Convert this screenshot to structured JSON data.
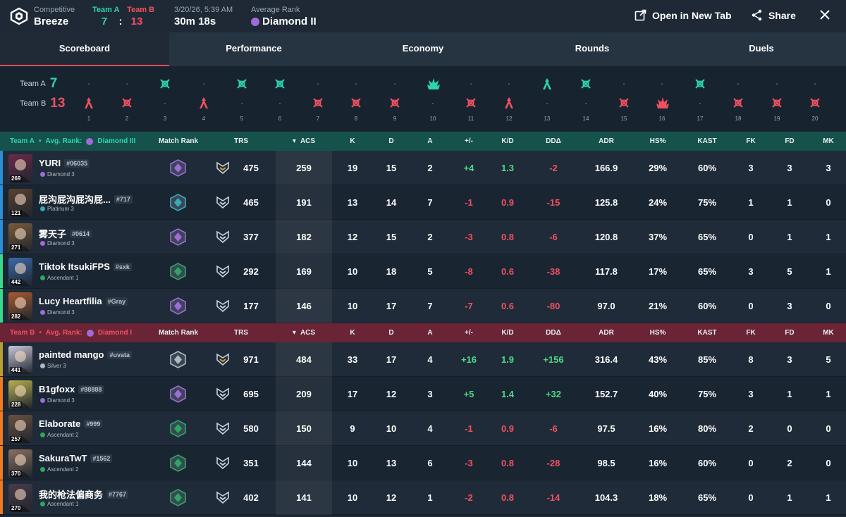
{
  "header": {
    "mode_label": "Competitive",
    "map": "Breeze",
    "team_a_label": "Team A",
    "team_b_label": "Team B",
    "team_a_score": "7",
    "score_sep": ":",
    "team_b_score": "13",
    "datetime": "3/20/26, 5:39 AM",
    "duration": "30m 18s",
    "avg_rank_label": "Average Rank",
    "avg_rank": "Diamond II",
    "open_tab_label": "Open in New Tab",
    "share_label": "Share"
  },
  "tabs": [
    "Scoreboard",
    "Performance",
    "Economy",
    "Rounds",
    "Duels"
  ],
  "timeline": {
    "team_a_label": "Team A",
    "team_a_score": "7",
    "team_b_label": "Team B",
    "team_b_score": "13",
    "rounds": [
      {
        "n": "1",
        "winner": "B",
        "type": "elim-b"
      },
      {
        "n": "2",
        "winner": "B",
        "type": "skull"
      },
      {
        "n": "3",
        "winner": "A",
        "type": "skull"
      },
      {
        "n": "4",
        "winner": "B",
        "type": "elim-b"
      },
      {
        "n": "5",
        "winner": "A",
        "type": "skull"
      },
      {
        "n": "6",
        "winner": "A",
        "type": "skull"
      },
      {
        "n": "7",
        "winner": "B",
        "type": "skull"
      },
      {
        "n": "8",
        "winner": "B",
        "type": "skull"
      },
      {
        "n": "9",
        "winner": "B",
        "type": "skull"
      },
      {
        "n": "10",
        "winner": "A",
        "type": "spike"
      },
      {
        "n": "11",
        "winner": "B",
        "type": "skull"
      },
      {
        "n": "12",
        "winner": "B",
        "type": "elim-b"
      },
      {
        "n": "13",
        "winner": "A",
        "type": "elim-b"
      },
      {
        "n": "14",
        "winner": "A",
        "type": "skull"
      },
      {
        "n": "15",
        "winner": "B",
        "type": "skull"
      },
      {
        "n": "16",
        "winner": "B",
        "type": "spike"
      },
      {
        "n": "17",
        "winner": "A",
        "type": "skull"
      },
      {
        "n": "18",
        "winner": "B",
        "type": "skull"
      },
      {
        "n": "19",
        "winner": "B",
        "type": "skull"
      },
      {
        "n": "20",
        "winner": "B",
        "type": "skull"
      }
    ]
  },
  "columns": {
    "match_rank": "Match Rank",
    "trs": "TRS",
    "acs": "ACS",
    "k": "K",
    "d": "D",
    "a": "A",
    "pm": "+/-",
    "kd": "K/D",
    "dd": "DDΔ",
    "adr": "ADR",
    "hs": "HS%",
    "kast": "KAST",
    "fk": "FK",
    "fd": "FD",
    "mk": "MK"
  },
  "teams": [
    {
      "name": "Team A",
      "bullet": "•",
      "avg_label": "Avg. Rank:",
      "avg_rank": "Diamond III",
      "players": [
        {
          "name": "YURI",
          "tag": "#06035",
          "rank": "Diamond 3",
          "level": "269",
          "bar": "#2a8fd6",
          "mrank": "diamond",
          "trs": "475",
          "acs": "259",
          "k": "19",
          "d": "15",
          "a": "2",
          "pm": "+4",
          "kd": "1.3",
          "dd": "-2",
          "adr": "166.9",
          "hs": "29%",
          "kast": "60%",
          "fk": "3",
          "fd": "3",
          "mk": "3",
          "portrait": "#6b2a4a"
        },
        {
          "name": "屁沟屁沟屁沟屁...",
          "tag": "#717",
          "rank": "Platinum 3",
          "level": "121",
          "bar": "#2a8fd6",
          "mrank": "platinum",
          "trs": "465",
          "acs": "191",
          "k": "13",
          "d": "14",
          "a": "7",
          "pm": "-1",
          "kd": "0.9",
          "dd": "-15",
          "adr": "125.8",
          "hs": "24%",
          "kast": "75%",
          "fk": "1",
          "fd": "1",
          "mk": "0",
          "portrait": "#5a4030"
        },
        {
          "name": "雾天子",
          "tag": "#0614",
          "rank": "Diamond 3",
          "level": "271",
          "bar": "#2a8fd6",
          "mrank": "diamond",
          "trs": "377",
          "acs": "182",
          "k": "12",
          "d": "15",
          "a": "2",
          "pm": "-3",
          "kd": "0.8",
          "dd": "-6",
          "adr": "120.8",
          "hs": "37%",
          "kast": "65%",
          "fk": "0",
          "fd": "1",
          "mk": "1",
          "portrait": "#7a5a3a"
        },
        {
          "name": "Tiktok ItsukiFPS",
          "tag": "#sxk",
          "rank": "Ascendant 1",
          "level": "442",
          "bar": "#38d98a",
          "mrank": "ascendant",
          "trs": "292",
          "acs": "169",
          "k": "10",
          "d": "18",
          "a": "5",
          "pm": "-8",
          "kd": "0.6",
          "dd": "-38",
          "adr": "117.8",
          "hs": "17%",
          "kast": "65%",
          "fk": "3",
          "fd": "5",
          "mk": "1",
          "portrait": "#3a6aa8"
        },
        {
          "name": "Lucy Heartfilia",
          "tag": "#Gray",
          "rank": "Diamond 3",
          "level": "282",
          "bar": "#38d98a",
          "mrank": "diamond",
          "trs": "177",
          "acs": "146",
          "k": "10",
          "d": "17",
          "a": "7",
          "pm": "-7",
          "kd": "0.6",
          "dd": "-80",
          "adr": "97.0",
          "hs": "21%",
          "kast": "60%",
          "fk": "0",
          "fd": "3",
          "mk": "0",
          "portrait": "#a85a30"
        }
      ]
    },
    {
      "name": "Team B",
      "bullet": "•",
      "avg_label": "Avg. Rank:",
      "avg_rank": "Diamond I",
      "players": [
        {
          "name": "painted mango",
          "tag": "#uvata",
          "rank": "Silver 3",
          "level": "441",
          "bar": "#b8a030",
          "mrank": "silver",
          "trs": "971",
          "acs": "484",
          "k": "33",
          "d": "17",
          "a": "4",
          "pm": "+16",
          "kd": "1.9",
          "dd": "+156",
          "adr": "316.4",
          "hs": "43%",
          "kast": "85%",
          "fk": "8",
          "fd": "3",
          "mk": "5",
          "portrait": "#c8c8d8"
        },
        {
          "name": "B1gfoxx",
          "tag": "#88888",
          "rank": "Diamond 3",
          "level": "228",
          "bar": "#f07a20",
          "mrank": "diamond",
          "trs": "695",
          "acs": "209",
          "k": "17",
          "d": "12",
          "a": "3",
          "pm": "+5",
          "kd": "1.4",
          "dd": "+32",
          "adr": "152.7",
          "hs": "40%",
          "kast": "75%",
          "fk": "3",
          "fd": "1",
          "mk": "1",
          "portrait": "#b8b050"
        },
        {
          "name": "Elaborate",
          "tag": "#999",
          "rank": "Ascendant 2",
          "level": "257",
          "bar": "#f07a20",
          "mrank": "ascendant",
          "trs": "580",
          "acs": "150",
          "k": "9",
          "d": "10",
          "a": "4",
          "pm": "-1",
          "kd": "0.9",
          "dd": "-6",
          "adr": "97.5",
          "hs": "16%",
          "kast": "80%",
          "fk": "2",
          "fd": "0",
          "mk": "0",
          "portrait": "#6a5040"
        },
        {
          "name": "SakuraTwT",
          "tag": "#1562",
          "rank": "Ascendant 2",
          "level": "370",
          "bar": "#f07a20",
          "mrank": "ascendant",
          "trs": "351",
          "acs": "144",
          "k": "10",
          "d": "13",
          "a": "6",
          "pm": "-3",
          "kd": "0.8",
          "dd": "-28",
          "adr": "98.5",
          "hs": "16%",
          "kast": "60%",
          "fk": "0",
          "fd": "2",
          "mk": "0",
          "portrait": "#8a7060"
        },
        {
          "name": "我的枪法偏商务",
          "tag": "#7767",
          "rank": "Ascendant 1",
          "level": "270",
          "bar": "#f07a20",
          "mrank": "ascendant",
          "trs": "402",
          "acs": "141",
          "k": "10",
          "d": "12",
          "a": "1",
          "pm": "-2",
          "kd": "0.8",
          "dd": "-14",
          "adr": "104.3",
          "hs": "18%",
          "kast": "65%",
          "fk": "0",
          "fd": "1",
          "mk": "1",
          "portrait": "#4a3a4a"
        }
      ]
    }
  ],
  "colors": {
    "team_a": "#2dd4b0",
    "team_b": "#f05060",
    "positive": "#4fd98a",
    "negative": "#f05060",
    "diamond": "#a06ad8",
    "platinum": "#3aa8b8",
    "ascendant": "#2aa860",
    "silver": "#b0b8c0"
  }
}
